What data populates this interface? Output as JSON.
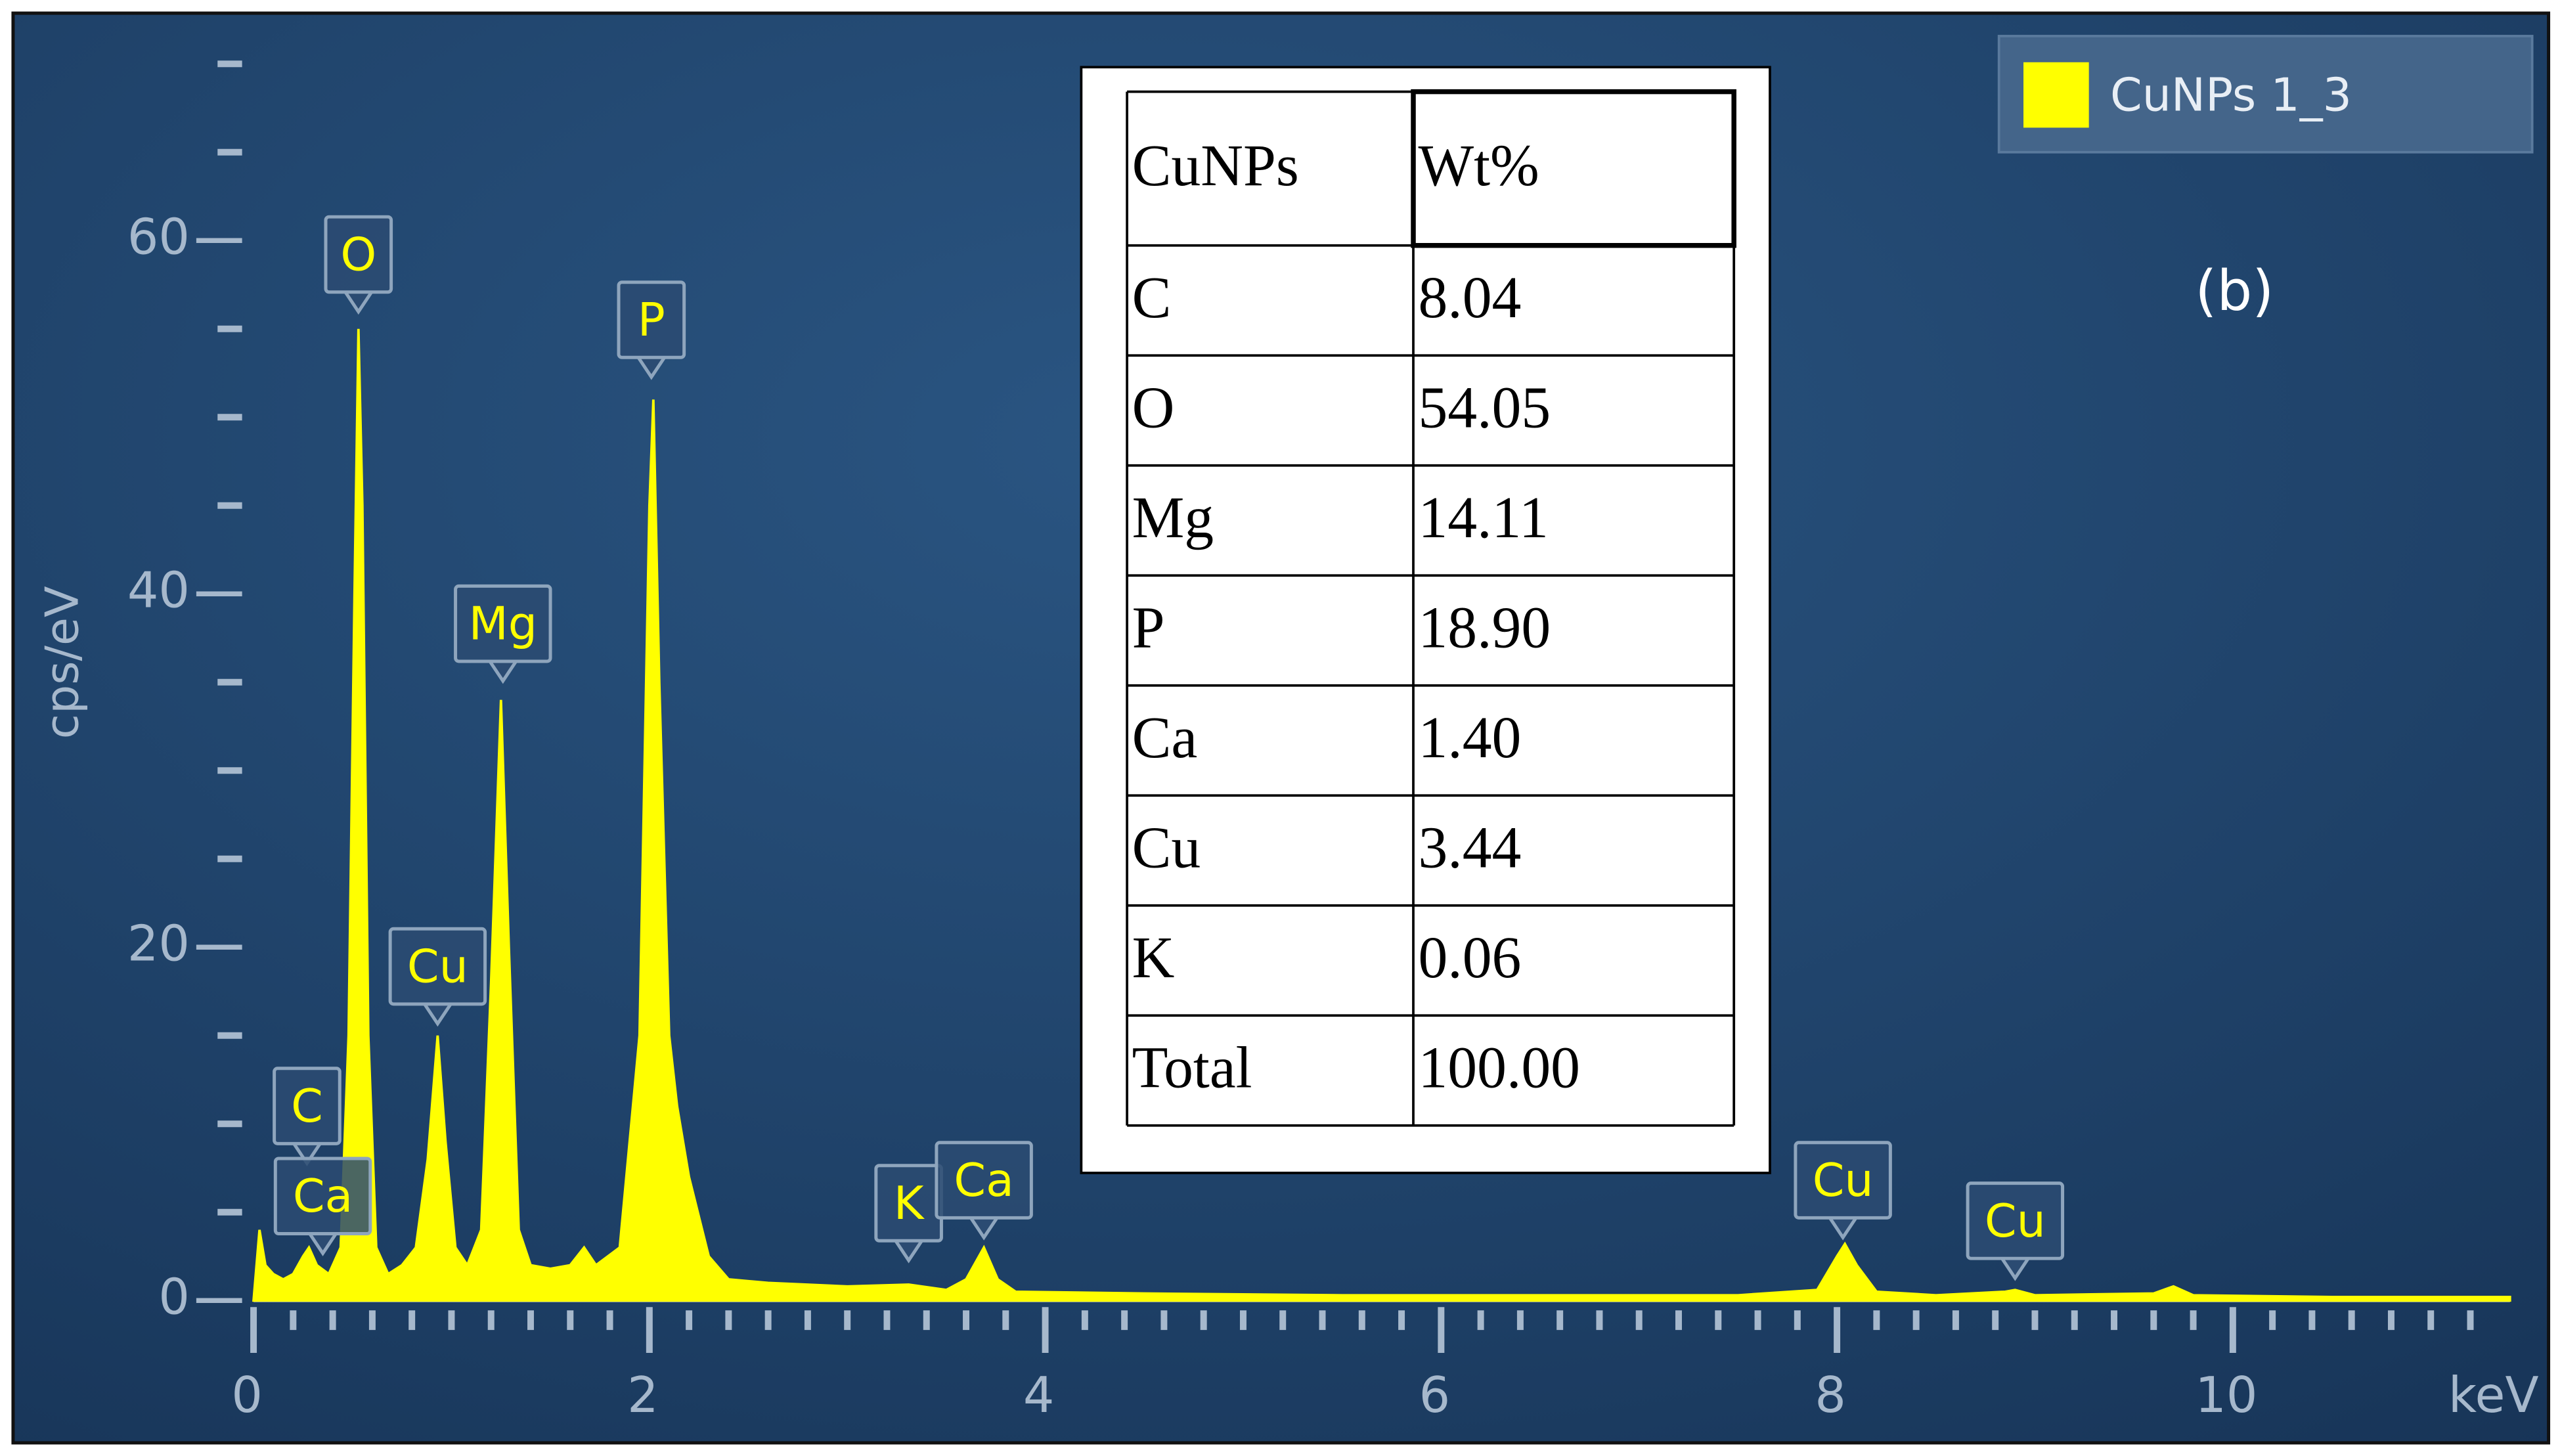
{
  "chart_data": {
    "type": "area",
    "xlabel": "keV",
    "ylabel": "cps/eV",
    "annotation": "(b)",
    "legend": "top-right",
    "x": [
      0.0,
      0.03,
      0.06,
      0.1,
      0.15,
      0.2,
      0.25,
      0.28,
      0.32,
      0.38,
      0.44,
      0.48,
      0.51,
      0.53,
      0.55,
      0.58,
      0.62,
      0.68,
      0.75,
      0.82,
      0.88,
      0.93,
      0.97,
      1.02,
      1.08,
      1.15,
      1.2,
      1.25,
      1.29,
      1.34,
      1.4,
      1.5,
      1.6,
      1.67,
      1.73,
      1.85,
      1.95,
      2.0,
      2.02,
      2.05,
      2.1,
      2.14,
      2.2,
      2.3,
      2.4,
      2.6,
      3.0,
      3.31,
      3.5,
      3.6,
      3.69,
      3.76,
      3.85,
      4.5,
      5.5,
      6.5,
      7.5,
      7.9,
      8.0,
      8.04,
      8.1,
      8.2,
      8.5,
      8.85,
      8.9,
      9.0,
      9.6,
      9.7,
      9.8,
      10.5,
      11.4
    ],
    "series": [
      {
        "name": "CuNPs 1_3",
        "color": "#ffff00",
        "values": [
          0,
          4,
          2,
          1.5,
          1.2,
          1.5,
          2.5,
          3,
          2,
          1.5,
          3,
          15,
          40,
          55,
          45,
          15,
          3,
          1.5,
          2,
          3,
          8,
          15,
          9,
          3,
          2,
          4,
          18,
          34,
          20,
          4,
          2,
          1.8,
          2,
          3,
          2,
          3,
          15,
          45,
          51,
          35,
          15,
          11,
          7,
          2.5,
          1.2,
          1,
          0.8,
          0.9,
          0.6,
          1.2,
          3,
          1.2,
          0.5,
          0.4,
          0.3,
          0.3,
          0.3,
          0.6,
          2.5,
          3.2,
          2,
          0.5,
          0.3,
          0.5,
          0.6,
          0.3,
          0.4,
          0.8,
          0.3,
          0.2,
          0.2
        ]
      }
    ],
    "xlim": [
      0,
      11.4
    ],
    "ylim": [
      0,
      70
    ],
    "xticks": [
      0,
      2,
      4,
      6,
      8,
      10
    ],
    "yticks": [
      0,
      20,
      40,
      60
    ],
    "xminorticks": [
      0.2,
      0.4,
      0.6,
      0.8,
      1.0,
      1.2,
      1.4,
      1.6,
      1.8,
      2.2,
      2.4,
      2.6,
      2.8,
      3.0,
      3.2,
      3.4,
      3.6,
      3.8,
      4.2,
      4.4,
      4.6,
      4.8,
      5.0,
      5.2,
      5.4,
      5.6,
      5.8,
      6.2,
      6.4,
      6.6,
      6.8,
      7.0,
      7.2,
      7.4,
      7.6,
      7.8,
      8.2,
      8.4,
      8.6,
      8.8,
      9.0,
      9.2,
      9.4,
      9.6,
      9.8,
      10.2,
      10.4,
      10.6,
      10.8,
      11.0,
      11.2
    ],
    "yminorticks": [
      5,
      10,
      15,
      25,
      30,
      35,
      45,
      50,
      55,
      65,
      70
    ],
    "peaks": [
      {
        "text": "C",
        "x": 0.27,
        "y": 7.4
      },
      {
        "text": "Ca",
        "x": 0.35,
        "y": 2.3
      },
      {
        "text": "O",
        "x": 0.53,
        "y": 55.6
      },
      {
        "text": "Cu",
        "x": 0.93,
        "y": 15.3
      },
      {
        "text": "Mg",
        "x": 1.26,
        "y": 34.7
      },
      {
        "text": "P",
        "x": 2.01,
        "y": 51.9
      },
      {
        "text": "K",
        "x": 3.31,
        "y": 1.9
      },
      {
        "text": "Ca",
        "x": 3.69,
        "y": 3.2
      },
      {
        "text": "Cu",
        "x": 8.03,
        "y": 3.2
      },
      {
        "text": "Cu",
        "x": 8.9,
        "y": 0.9
      }
    ]
  },
  "table": {
    "header": [
      "CuNPs",
      "Wt%"
    ],
    "rows": [
      [
        "C",
        "8.04"
      ],
      [
        "O",
        "54.05"
      ],
      [
        "Mg",
        "14.11"
      ],
      [
        "P",
        "18.90"
      ],
      [
        "Ca",
        "1.40"
      ],
      [
        "Cu",
        "3.44"
      ],
      [
        "K",
        "0.06"
      ],
      [
        "Total",
        "100.00"
      ]
    ]
  }
}
